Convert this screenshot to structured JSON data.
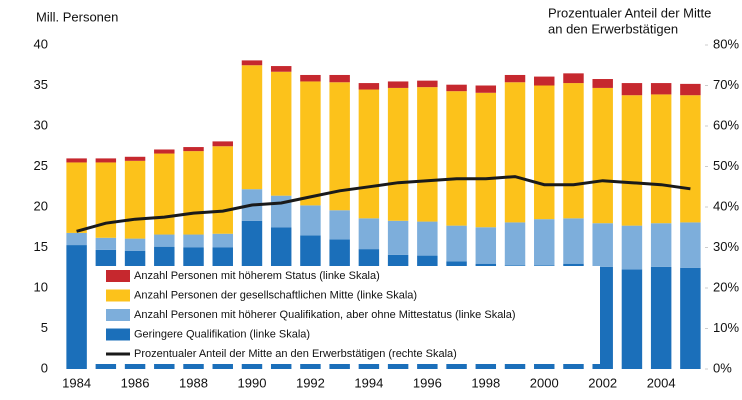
{
  "chart_data": {
    "type": "bar",
    "stacked": true,
    "ylabel": "Mill. Personen",
    "y2label": [
      "Prozentualer Anteil der Mitte",
      "an den Erwerbstätigen"
    ],
    "categories": [
      "1984",
      null,
      "1986",
      null,
      "1988",
      null,
      "1990",
      null,
      "1992",
      null,
      "1994",
      null,
      "1996",
      null,
      "1998",
      null,
      "2000",
      null,
      "2002",
      null,
      "2004",
      null
    ],
    "series": [
      {
        "name": "Geringere Qualifikation (linke Skala)",
        "color": "#1b6fba",
        "values": [
          15.3,
          14.7,
          14.6,
          15.1,
          15.0,
          15.0,
          18.3,
          17.5,
          16.5,
          16.0,
          14.8,
          14.1,
          14.0,
          13.3,
          13.0,
          12.8,
          12.8,
          13.0,
          12.6,
          12.3,
          12.6,
          12.5
        ]
      },
      {
        "name": "Anzahl Personen mit höherer Qualifikation, aber ohne Mittestatus (linke Skala)",
        "color": "#7daedb",
        "values": [
          1.5,
          1.5,
          1.5,
          1.5,
          1.6,
          1.7,
          3.9,
          3.9,
          3.7,
          3.6,
          3.8,
          4.2,
          4.2,
          4.4,
          4.5,
          5.3,
          5.7,
          5.6,
          5.4,
          5.4,
          5.4,
          5.6
        ]
      },
      {
        "name": "Anzahl Personen der gesellschaftlichen Mitte (linke Skala)",
        "color": "#fcc21b",
        "values": [
          8.7,
          9.3,
          9.6,
          10.0,
          10.3,
          10.8,
          15.3,
          15.3,
          15.3,
          15.8,
          15.9,
          16.4,
          16.6,
          16.6,
          16.6,
          17.3,
          16.5,
          16.7,
          16.7,
          16.1,
          15.9,
          15.7
        ]
      },
      {
        "name": "Anzahl Personen mit höherem Status  (linke Skala)",
        "color": "#c6282e",
        "values": [
          0.5,
          0.5,
          0.5,
          0.5,
          0.5,
          0.6,
          0.6,
          0.7,
          0.8,
          0.9,
          0.8,
          0.8,
          0.8,
          0.8,
          0.9,
          0.9,
          1.1,
          1.2,
          1.1,
          1.5,
          1.4,
          1.4
        ]
      },
      {
        "name": "Prozentualer Anteil der Mitte an den Erwerbstätigen (rechte Skala)",
        "color": "#1a1a1a",
        "type": "line",
        "axis": "y2",
        "values": [
          34,
          36,
          37,
          37.5,
          38.5,
          39,
          40.5,
          41,
          42.5,
          44,
          45,
          46,
          46.5,
          47,
          47,
          47.5,
          45.5,
          45.5,
          46.5,
          46,
          45.5,
          44.5
        ]
      }
    ],
    "ylim": [
      0,
      40
    ],
    "yticks": [
      0,
      5,
      10,
      15,
      20,
      25,
      30,
      35,
      40
    ],
    "y2lim": [
      0,
      80
    ],
    "y2ticks": [
      {
        "value": 0,
        "label": "0%"
      },
      {
        "value": 10,
        "label": "10%"
      },
      {
        "value": 20,
        "label": "20%"
      },
      {
        "value": 30,
        "label": "30%"
      },
      {
        "value": 40,
        "label": "40%"
      },
      {
        "value": 50,
        "label": "50%"
      },
      {
        "value": 60,
        "label": "60%"
      },
      {
        "value": 70,
        "label": "70%"
      },
      {
        "value": 80,
        "label": "80%"
      }
    ],
    "grid": false,
    "legend": "lower left"
  }
}
